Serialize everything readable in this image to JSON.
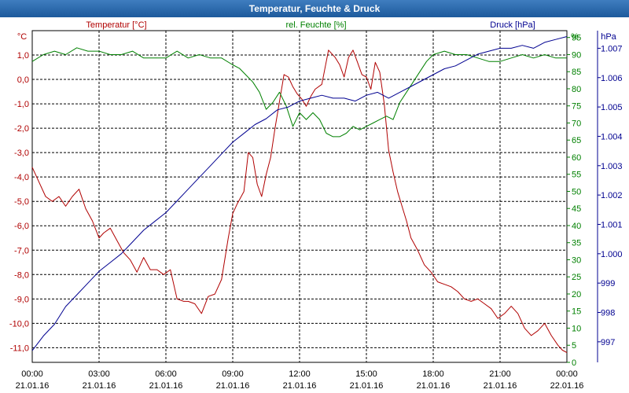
{
  "window": {
    "title": "Temperatur, Feuchte & Druck"
  },
  "colors": {
    "temperature": "#b00000",
    "humidity": "#008000",
    "pressure": "#000090",
    "grid": "#000000"
  },
  "chart_data": {
    "type": "line",
    "title": "Temperatur, Feuchte & Druck",
    "xlabel": "",
    "x_ticks": [
      {
        "time": "00:00",
        "date": "21.01.16"
      },
      {
        "time": "03:00",
        "date": "21.01.16"
      },
      {
        "time": "06:00",
        "date": "21.01.16"
      },
      {
        "time": "09:00",
        "date": "21.01.16"
      },
      {
        "time": "12:00",
        "date": "21.01.16"
      },
      {
        "time": "15:00",
        "date": "21.01.16"
      },
      {
        "time": "18:00",
        "date": "21.01.16"
      },
      {
        "time": "21:00",
        "date": "21.01.16"
      },
      {
        "time": "00:00",
        "date": "22.01.16"
      }
    ],
    "xlim_hours": [
      0,
      24
    ],
    "axes": {
      "temperature": {
        "unit": "°C",
        "label": "Temperatur [°C]",
        "ylim": [
          -11.6,
          2.0
        ],
        "ticks": [
          "1,0",
          "0,0",
          "-1,0",
          "-2,0",
          "-3,0",
          "-4,0",
          "-5,0",
          "-6,0",
          "-7,0",
          "-8,0",
          "-9,0",
          "-10,0",
          "-11,0"
        ],
        "tick_values": [
          1,
          0,
          -1,
          -2,
          -3,
          -4,
          -5,
          -6,
          -7,
          -8,
          -9,
          -10,
          -11
        ]
      },
      "humidity": {
        "unit": "%",
        "label": "rel. Feuchte [%]",
        "ylim": [
          0,
          97
        ],
        "ticks": [
          "95",
          "90",
          "85",
          "80",
          "75",
          "70",
          "65",
          "60",
          "55",
          "50",
          "45",
          "40",
          "35",
          "30",
          "25",
          "20",
          "15",
          "10",
          "5",
          "0"
        ],
        "tick_values": [
          95,
          90,
          85,
          80,
          75,
          70,
          65,
          60,
          55,
          50,
          45,
          40,
          35,
          30,
          25,
          20,
          15,
          10,
          5,
          0
        ]
      },
      "pressure": {
        "unit": "hPa",
        "label": "Druck [hPa]",
        "ylim": [
          996.3,
          1007.6
        ],
        "ticks": [
          "1.007",
          "1.006",
          "1.005",
          "1.004",
          "1.003",
          "1.002",
          "1.001",
          "1.000",
          "999",
          "998",
          "997"
        ],
        "tick_values": [
          1007,
          1006,
          1005,
          1004,
          1003,
          1002,
          1001,
          1000,
          999,
          998,
          997
        ]
      }
    },
    "series": [
      {
        "name": "Temperatur [°C]",
        "axis": "temperature",
        "x": [
          0,
          0.3,
          0.6,
          0.9,
          1.2,
          1.5,
          1.8,
          2.1,
          2.4,
          2.7,
          3.0,
          3.2,
          3.5,
          3.8,
          4.1,
          4.4,
          4.7,
          5.0,
          5.3,
          5.6,
          5.9,
          6.2,
          6.5,
          6.8,
          7.0,
          7.3,
          7.6,
          7.9,
          8.2,
          8.5,
          8.8,
          9.0,
          9.2,
          9.5,
          9.7,
          9.9,
          10.1,
          10.3,
          10.5,
          10.7,
          10.9,
          11.1,
          11.3,
          11.5,
          11.7,
          11.9,
          12.1,
          12.3,
          12.5,
          12.7,
          13.0,
          13.3,
          13.6,
          13.8,
          14.0,
          14.2,
          14.4,
          14.6,
          14.8,
          15.0,
          15.2,
          15.4,
          15.6,
          15.8,
          16.0,
          16.2,
          16.4,
          16.6,
          16.8,
          17.0,
          17.3,
          17.6,
          17.9,
          18.2,
          18.5,
          18.8,
          19.1,
          19.4,
          19.7,
          20.0,
          20.3,
          20.6,
          20.9,
          21.2,
          21.5,
          21.8,
          22.1,
          22.4,
          22.7,
          23.0,
          23.3,
          23.6,
          23.8,
          24.0
        ],
        "values": [
          -3.6,
          -4.2,
          -4.8,
          -5.0,
          -4.8,
          -5.2,
          -4.8,
          -4.5,
          -5.3,
          -5.8,
          -6.5,
          -6.3,
          -6.1,
          -6.6,
          -7.1,
          -7.4,
          -7.9,
          -7.3,
          -7.8,
          -7.8,
          -8.0,
          -7.8,
          -9.0,
          -9.1,
          -9.1,
          -9.2,
          -9.6,
          -8.9,
          -8.8,
          -8.2,
          -6.5,
          -5.5,
          -5.1,
          -4.6,
          -3.0,
          -3.2,
          -4.3,
          -4.8,
          -3.9,
          -3.2,
          -2.0,
          -0.9,
          0.2,
          0.1,
          -0.3,
          -0.6,
          -0.8,
          -1.1,
          -0.7,
          -0.4,
          -0.2,
          1.2,
          0.9,
          0.6,
          0.1,
          0.9,
          1.2,
          0.7,
          0.2,
          0.1,
          -0.4,
          0.7,
          0.3,
          -1.0,
          -2.9,
          -3.8,
          -4.6,
          -5.2,
          -5.8,
          -6.5,
          -7.0,
          -7.6,
          -7.9,
          -8.3,
          -8.4,
          -8.5,
          -8.7,
          -9.0,
          -9.1,
          -9.0,
          -9.2,
          -9.4,
          -9.8,
          -9.6,
          -9.3,
          -9.6,
          -10.2,
          -10.5,
          -10.3,
          -10.0,
          -10.5,
          -10.9,
          -11.1,
          -11.2
        ]
      },
      {
        "name": "rel. Feuchte [%]",
        "axis": "humidity",
        "x": [
          0,
          0.5,
          1.0,
          1.5,
          2.0,
          2.5,
          3.0,
          3.5,
          4.0,
          4.5,
          5.0,
          5.5,
          6.0,
          6.5,
          7.0,
          7.5,
          8.0,
          8.5,
          9.0,
          9.3,
          9.6,
          9.9,
          10.2,
          10.5,
          10.8,
          11.1,
          11.4,
          11.7,
          12.0,
          12.3,
          12.6,
          12.9,
          13.2,
          13.5,
          13.8,
          14.1,
          14.4,
          14.7,
          15.0,
          15.3,
          15.6,
          15.9,
          16.2,
          16.5,
          16.8,
          17.1,
          17.4,
          17.7,
          18.0,
          18.5,
          19.0,
          19.5,
          20.0,
          20.5,
          21.0,
          21.5,
          22.0,
          22.5,
          23.0,
          23.5,
          24.0
        ],
        "values": [
          88,
          90,
          91,
          90,
          92,
          91,
          91,
          90,
          90,
          91,
          89,
          89,
          89,
          91,
          89,
          90,
          89,
          89,
          87,
          86,
          84,
          82,
          79,
          74,
          76,
          79,
          75,
          69,
          73,
          71,
          73,
          71,
          67,
          66,
          66,
          67,
          69,
          68,
          69,
          70,
          71,
          72,
          71,
          76,
          79,
          82,
          85,
          88,
          90,
          91,
          90,
          90,
          89,
          88,
          88,
          89,
          90,
          89,
          90,
          89,
          89
        ]
      },
      {
        "name": "Druck [hPa]",
        "axis": "pressure",
        "x": [
          0,
          0.5,
          1.0,
          1.5,
          2.0,
          2.5,
          3.0,
          3.5,
          4.0,
          4.5,
          5.0,
          5.5,
          6.0,
          6.5,
          7.0,
          7.5,
          8.0,
          8.5,
          9.0,
          9.5,
          10.0,
          10.5,
          11.0,
          11.5,
          12.0,
          12.5,
          13.0,
          13.5,
          14.0,
          14.5,
          15.0,
          15.5,
          16.0,
          16.5,
          17.0,
          17.5,
          18.0,
          18.5,
          19.0,
          19.5,
          20.0,
          20.5,
          21.0,
          21.5,
          22.0,
          22.5,
          23.0,
          23.5,
          24.0
        ],
        "values": [
          996.7,
          997.2,
          997.6,
          998.2,
          998.6,
          999.0,
          999.4,
          999.7,
          1000.0,
          1000.4,
          1000.8,
          1001.1,
          1001.4,
          1001.8,
          1002.2,
          1002.6,
          1003.0,
          1003.4,
          1003.8,
          1004.1,
          1004.4,
          1004.6,
          1004.9,
          1005.0,
          1005.2,
          1005.3,
          1005.4,
          1005.3,
          1005.3,
          1005.2,
          1005.4,
          1005.5,
          1005.3,
          1005.5,
          1005.7,
          1005.9,
          1006.1,
          1006.3,
          1006.4,
          1006.6,
          1006.8,
          1006.9,
          1007.0,
          1007.0,
          1007.1,
          1007.0,
          1007.2,
          1007.3,
          1007.4
        ]
      }
    ]
  }
}
